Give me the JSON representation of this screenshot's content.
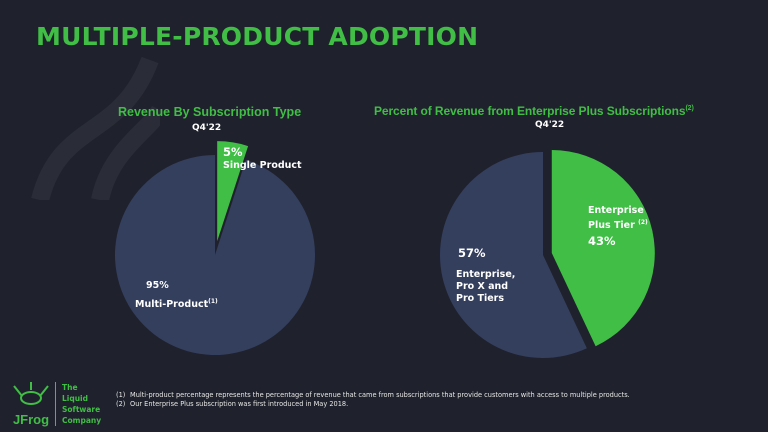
{
  "title": "MULTIPLE-PRODUCT ADOPTION",
  "colors": {
    "background": "#1f222c",
    "accent": "#40be46",
    "blue": "#343f5e"
  },
  "chart_data": [
    {
      "type": "pie",
      "title": "Revenue By Subscription Type",
      "subtitle": "Q4'22",
      "slices": [
        {
          "label": "Single Product",
          "value": 5,
          "value_label": "5%",
          "color": "#40be46",
          "exploded": true
        },
        {
          "label": "Multi-Product",
          "footnote": "(1)",
          "value": 95,
          "value_label": "95%",
          "color": "#343f5e"
        }
      ]
    },
    {
      "type": "pie",
      "title": "Percent of Revenue from Enterprise Plus Subscriptions",
      "title_footnote": "(2)",
      "subtitle": "Q4'22",
      "slices": [
        {
          "label_lines": [
            "Enterprise",
            "Plus Tier"
          ],
          "footnote": "(2)",
          "value": 43,
          "value_label": "43%",
          "color": "#40be46",
          "exploded": true
        },
        {
          "label_lines": [
            "Enterprise,",
            "Pro X and",
            "Pro Tiers"
          ],
          "value": 57,
          "value_label": "57%",
          "color": "#343f5e"
        }
      ]
    }
  ],
  "footnotes": [
    {
      "num": "(1)",
      "text": "Multi-product percentage represents the percentage of revenue that came from subscriptions that provide customers with access to multiple products."
    },
    {
      "num": "(2)",
      "text": "Our Enterprise Plus subscription was first introduced in May 2018."
    }
  ],
  "logo": {
    "brand": "JFrog",
    "tagline": [
      "The",
      "Liquid",
      "Software",
      "Company"
    ]
  }
}
